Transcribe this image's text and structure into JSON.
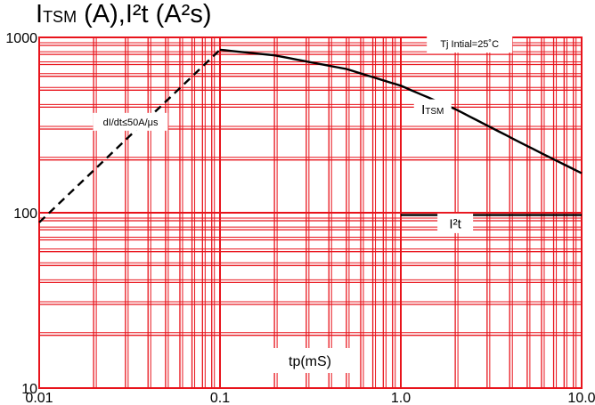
{
  "chart_data": {
    "type": "line",
    "title": {
      "sym": "I",
      "sub": "TSM",
      "rest": " (A),I²t (A²s)"
    },
    "xlabel": "tp(mS)",
    "x_scale": "log",
    "y_scale": "log",
    "xlim": [
      0.01,
      10
    ],
    "ylim": [
      10,
      1000
    ],
    "x_ticks": [
      {
        "value": 0.01,
        "label": "0.01"
      },
      {
        "value": 0.1,
        "label": "0.1"
      },
      {
        "value": 1,
        "label": "1.0"
      },
      {
        "value": 10,
        "label": "10.0"
      }
    ],
    "y_ticks": [
      {
        "value": 10,
        "label": "10"
      },
      {
        "value": 100,
        "label": "100"
      },
      {
        "value": 1000,
        "label": "1000"
      }
    ],
    "grid": true,
    "grid_color": "#e8141c",
    "line_color": "#000000",
    "series": [
      {
        "name": "ITSM",
        "style": "solid",
        "points": [
          [
            0.1,
            850
          ],
          [
            0.2,
            790
          ],
          [
            0.5,
            660
          ],
          [
            1.0,
            530
          ],
          [
            2.0,
            390
          ],
          [
            5.0,
            240
          ],
          [
            10.0,
            168
          ]
        ]
      },
      {
        "name": "dI/dt",
        "style": "dashed",
        "points": [
          [
            0.01,
            88
          ],
          [
            0.1,
            850
          ]
        ]
      },
      {
        "name": "I²t",
        "style": "solid",
        "points": [
          [
            1.0,
            97
          ],
          [
            10.0,
            97
          ]
        ]
      }
    ],
    "annotations": [
      {
        "text": "Tj Intial=25˚C",
        "x": 2.4,
        "y": 920
      },
      {
        "text": "dI/dt≤50A/μs",
        "x": 0.032,
        "y": 330
      },
      {
        "text": "TSM",
        "prefix": "I",
        "x": 1.5,
        "y": 390
      },
      {
        "text": "I²t",
        "x": 2.0,
        "y": 87
      }
    ]
  }
}
